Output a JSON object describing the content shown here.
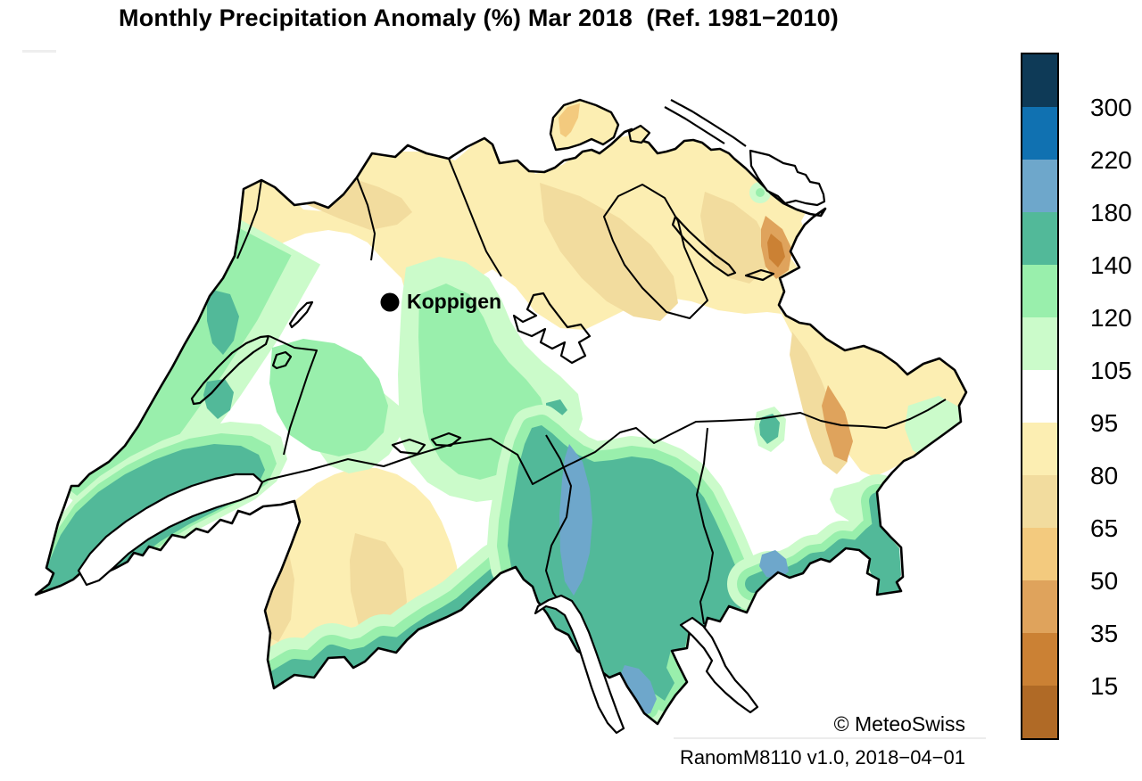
{
  "title": "Monthly Precipitation Anomaly (%) Mar 2018  (Ref. 1981−2010)",
  "station": {
    "label": "Koppigen"
  },
  "footer": {
    "copyright": "© MeteoSwiss",
    "version": "RanomM8110 v1.0, 2018−04−01"
  },
  "legend": {
    "title": "",
    "ticks": [
      300,
      220,
      180,
      140,
      120,
      105,
      95,
      80,
      65,
      50,
      35,
      15
    ],
    "colors": [
      "#0e3a57",
      "#1071b1",
      "#6ea7cb",
      "#52b999",
      "#99efac",
      "#cbfbca",
      "#ffffff",
      "#fceeb2",
      "#f2dc9e",
      "#f3ca7e",
      "#dfa35c",
      "#cb8134",
      "#b06a26"
    ],
    "band_meaning": "precipitation anomaly in percent of 1981-2010 norm"
  },
  "map": {
    "marker": {
      "label": "Koppigen"
    }
  }
}
